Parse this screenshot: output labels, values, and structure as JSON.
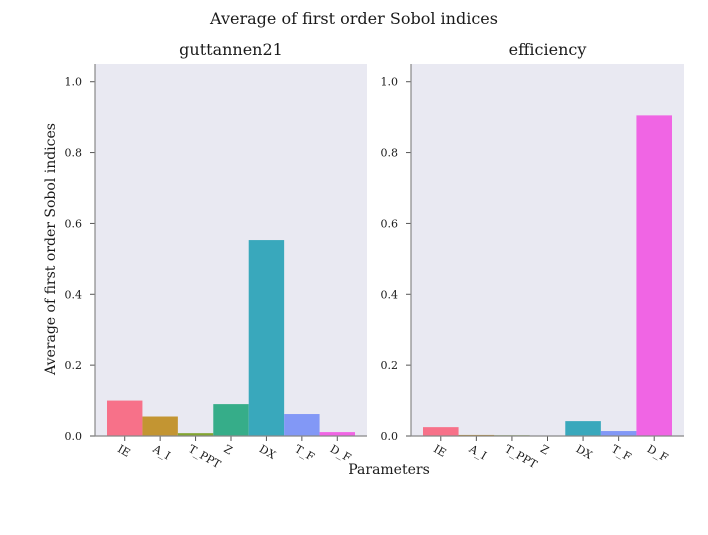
{
  "figure": {
    "suptitle": "Average of first order Sobol indices",
    "ylabel": "Average of first order Sobol indices",
    "xlabel": "Parameters"
  },
  "chart_data": [
    {
      "type": "bar",
      "title": "guttannen21",
      "categories": [
        "IE",
        "A_I",
        "T_PPT",
        "Z",
        "DX",
        "T_F",
        "D_F"
      ],
      "values": [
        0.1,
        0.055,
        0.008,
        0.09,
        0.553,
        0.062,
        0.011
      ],
      "colors": [
        "#f77189",
        "#c39532",
        "#82a531",
        "#36ad89",
        "#39a8bc",
        "#8298f6",
        "#f065e4"
      ],
      "ylim": [
        0,
        1.05
      ],
      "yticks": [
        "0.0",
        "0.2",
        "0.4",
        "0.6",
        "0.8",
        "1.0"
      ]
    },
    {
      "type": "bar",
      "title": "efficiency",
      "categories": [
        "IE",
        "A_I",
        "T_PPT",
        "Z",
        "DX",
        "T_F",
        "D_F"
      ],
      "values": [
        0.025,
        0.003,
        0.002,
        0.0,
        0.042,
        0.014,
        0.905
      ],
      "colors": [
        "#f77189",
        "#c39532",
        "#82a531",
        "#36ad89",
        "#39a8bc",
        "#8298f6",
        "#f065e4"
      ],
      "ylim": [
        0,
        1.05
      ],
      "yticks": [
        "0.0",
        "0.2",
        "0.4",
        "0.6",
        "0.8",
        "1.0"
      ]
    }
  ]
}
